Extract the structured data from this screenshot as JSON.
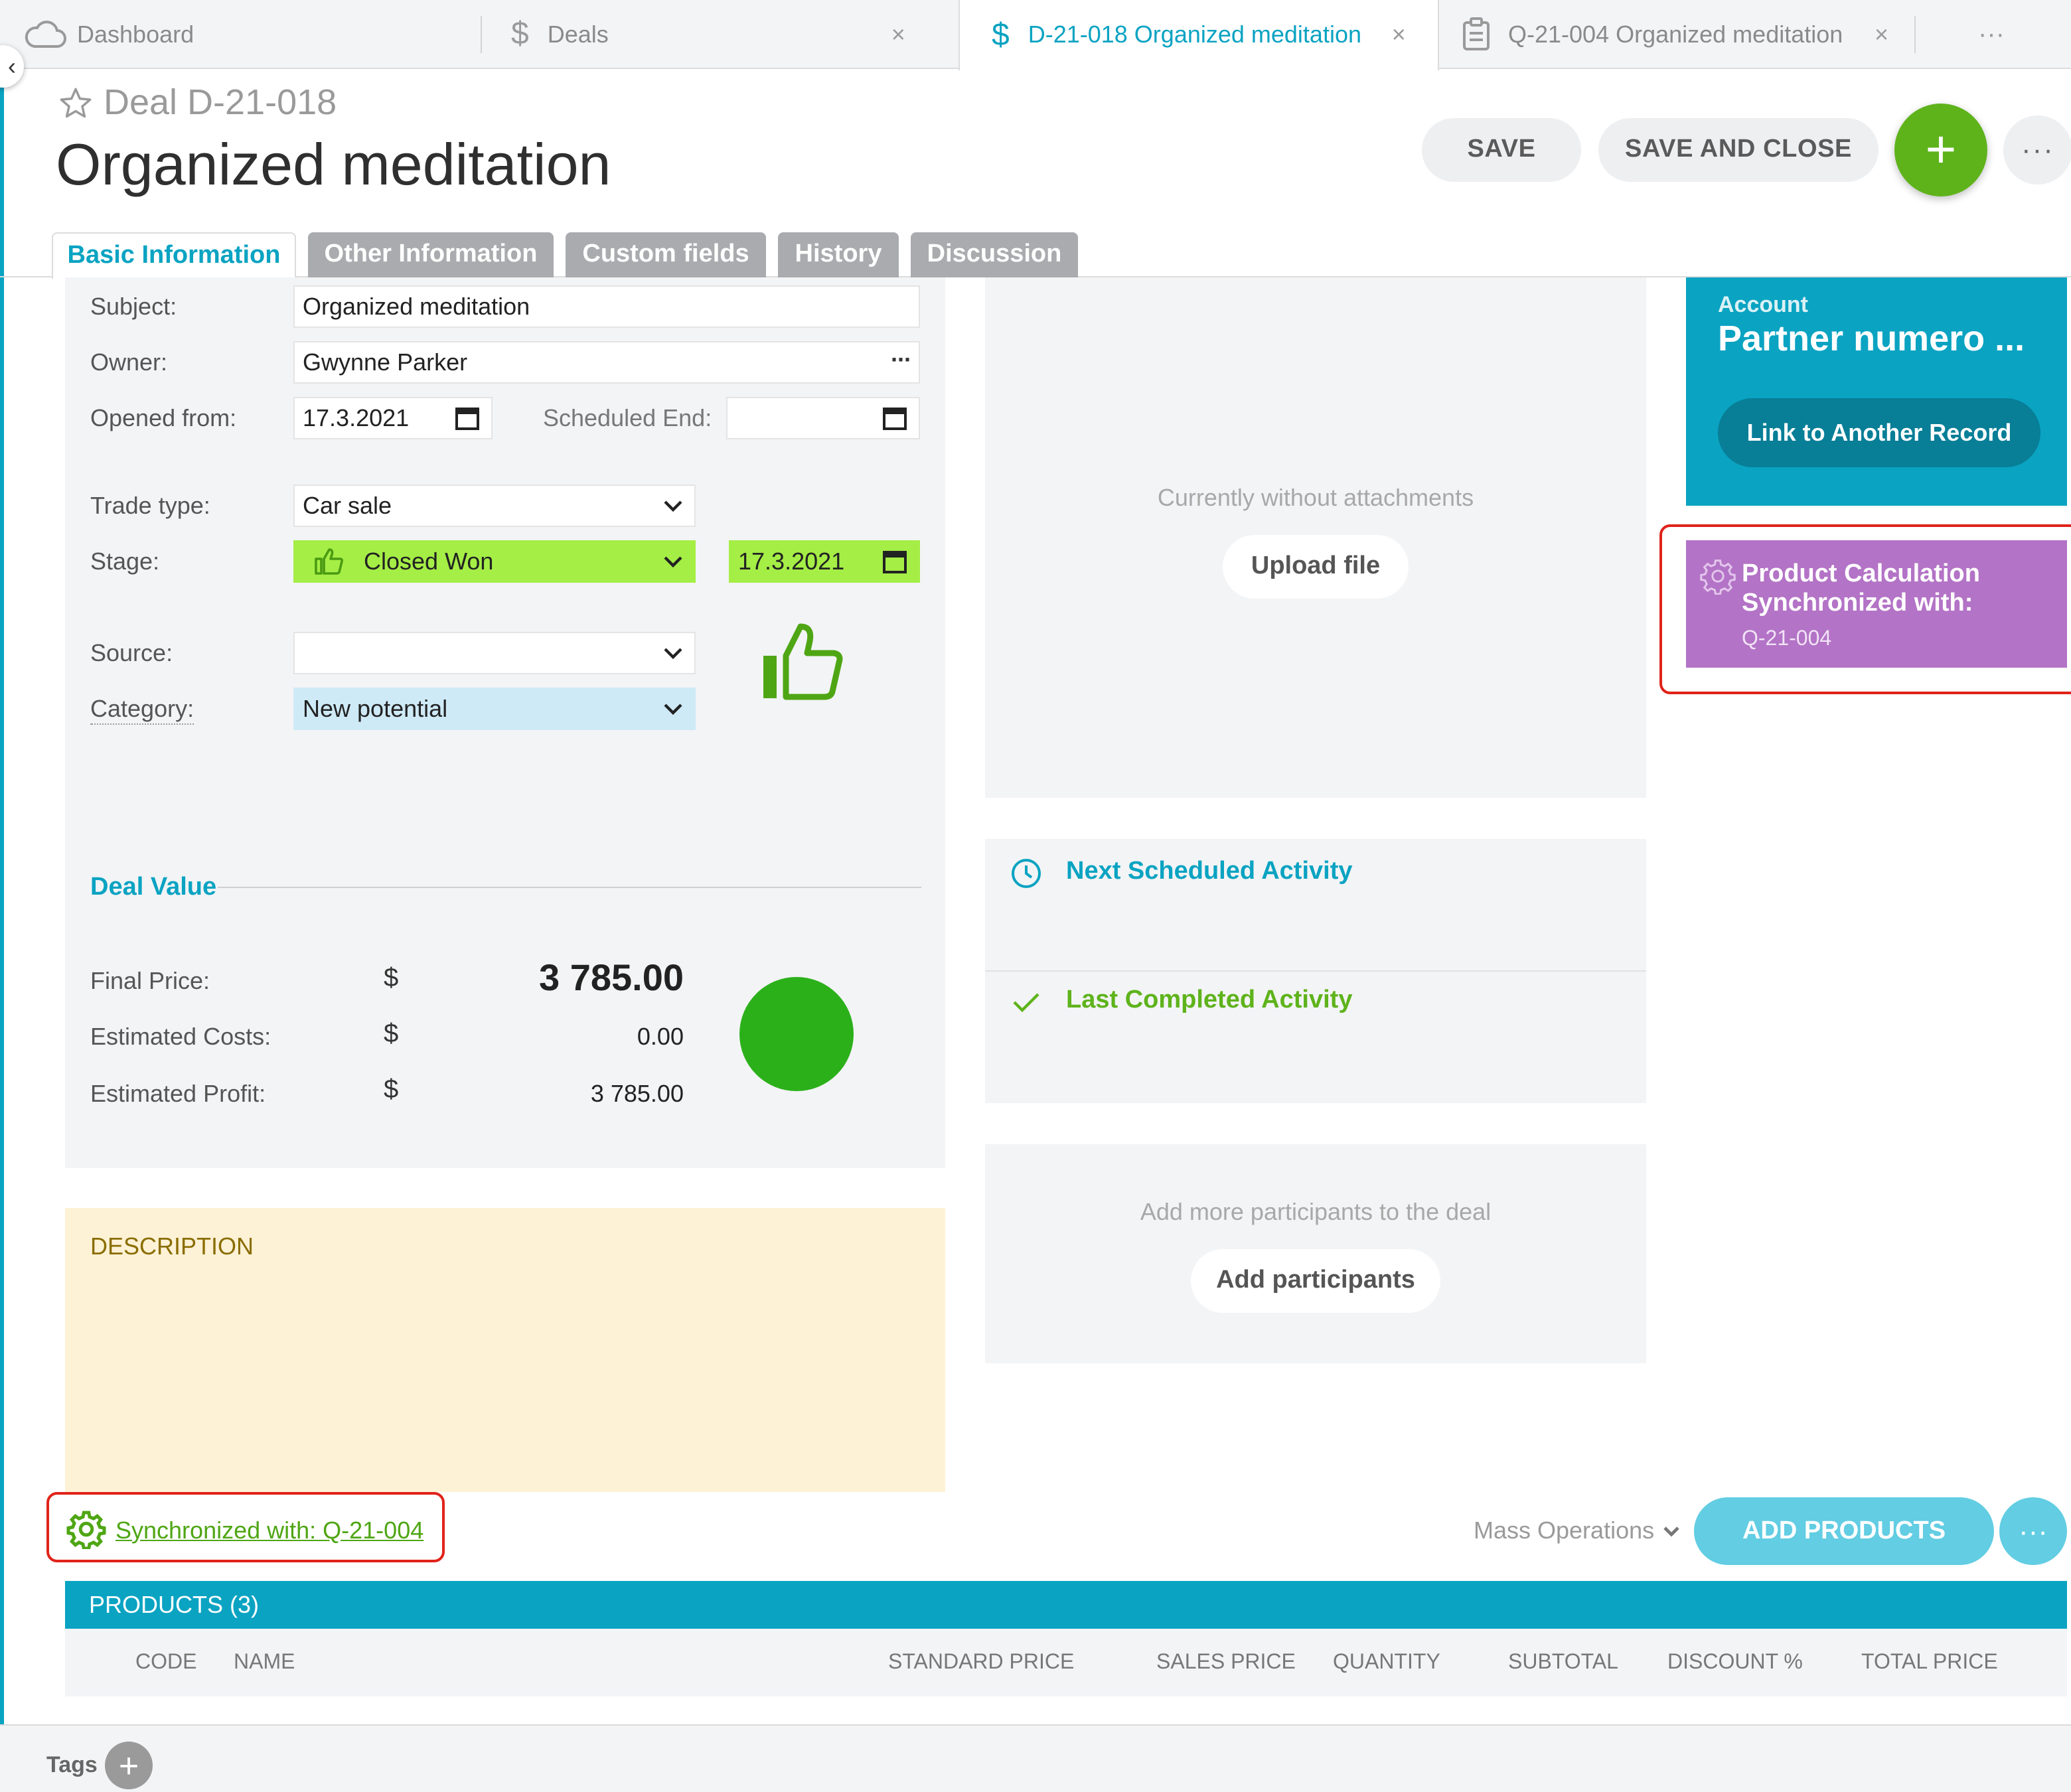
{
  "tabs": [
    {
      "label": "Dashboard",
      "icon": "cloud-icon"
    },
    {
      "label": "Deals",
      "icon": "dollar-icon"
    },
    {
      "label": "D-21-018 Organized meditation",
      "icon": "dollar-icon"
    },
    {
      "label": "Q-21-004 Organized meditation",
      "icon": "clipboard-icon"
    }
  ],
  "tab_close": "×",
  "tab_more": "···",
  "header": {
    "deal_id": "Deal D-21-018",
    "title": "Organized meditation",
    "save": "SAVE",
    "save_close": "SAVE AND CLOSE",
    "plus": "+",
    "more": "···"
  },
  "form_tabs": [
    "Basic Information",
    "Other Information",
    "Custom fields",
    "History",
    "Discussion"
  ],
  "form": {
    "subject_label": "Subject:",
    "subject_value": "Organized meditation",
    "owner_label": "Owner:",
    "owner_value": "Gwynne Parker",
    "opened_label": "Opened from:",
    "opened_value": "17.3.2021",
    "sched_end_label": "Scheduled End:",
    "sched_end_value": "",
    "trade_label": "Trade type:",
    "trade_value": "Car sale",
    "stage_label": "Stage:",
    "stage_value": "Closed Won",
    "stage_date": "17.3.2021",
    "source_label": "Source:",
    "source_value": "",
    "category_label": "Category:",
    "category_value": "New potential"
  },
  "deal_value": {
    "heading": "Deal Value",
    "final_label": "Final Price:",
    "final_value": "3 785.00",
    "costs_label": "Estimated Costs:",
    "costs_value": "0.00",
    "profit_label": "Estimated Profit:",
    "profit_value": "3 785.00",
    "currency": "$"
  },
  "description": {
    "heading": "DESCRIPTION"
  },
  "attachments": {
    "empty": "Currently without attachments",
    "upload": "Upload file"
  },
  "activities": {
    "next": "Next Scheduled Activity",
    "last": "Last Completed Activity"
  },
  "participants": {
    "empty": "Add more participants to the deal",
    "add": "Add participants"
  },
  "account": {
    "label": "Account",
    "name": "Partner numero ...",
    "link": "Link to Another Record"
  },
  "product_calc": {
    "line1": "Product Calculation",
    "line2": "Synchronized with:",
    "ref": "Q-21-004"
  },
  "sync_link": "Synchronized with: Q-21-004",
  "mass_ops": "Mass Operations",
  "add_products": "ADD PRODUCTS",
  "products": {
    "title": "PRODUCTS (3)",
    "columns": [
      "CODE",
      "NAME",
      "STANDARD PRICE",
      "SALES PRICE",
      "QUANTITY",
      "SUBTOTAL",
      "DISCOUNT %",
      "TOTAL PRICE"
    ]
  },
  "footer": {
    "tags": "Tags"
  },
  "colors": {
    "accent": "#0aa3c2",
    "green": "#5eb31b",
    "stage_green": "#a5ee46",
    "category_blue": "#cfeaf7",
    "purple": "#b373c6",
    "profit_dot": "#2bb01a",
    "highlight_red": "#e0231a"
  }
}
